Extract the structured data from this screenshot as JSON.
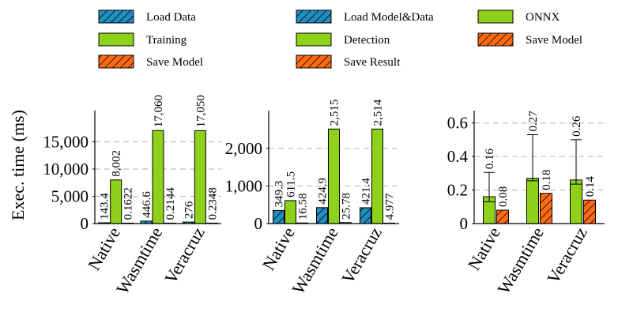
{
  "colors": {
    "load": "#1f8fc0",
    "train": "#8fd11a",
    "save": "#ff6a14",
    "grid": "#bdbdbd"
  },
  "legend": {
    "columns": [
      [
        {
          "label": "Load Data",
          "style": "load"
        },
        {
          "label": "Training",
          "style": "train"
        },
        {
          "label": "Save Model",
          "style": "save"
        }
      ],
      [
        {
          "label": "Load Model&Data",
          "style": "load"
        },
        {
          "label": "Detection",
          "style": "train"
        },
        {
          "label": "Save Result",
          "style": "save"
        }
      ],
      [
        {
          "label": "ONNX",
          "style": "train"
        },
        {
          "label": "Save Model",
          "style": "save"
        }
      ]
    ]
  },
  "chart_data": [
    {
      "type": "bar",
      "ylabel": "Exec. time (ms)",
      "categories": [
        "Native",
        "Wasmtime",
        "Veracruz"
      ],
      "ylim": [
        0,
        20000
      ],
      "yticks": [
        0,
        5000,
        10000,
        15000
      ],
      "ytick_labels": [
        "0",
        "5,000",
        "10,000",
        "15,000"
      ],
      "grid": true,
      "series": [
        {
          "name": "Load Data",
          "style": "load",
          "values": [
            143.4,
            446.6,
            276
          ],
          "labels": [
            "143.4",
            "446.6",
            "276"
          ]
        },
        {
          "name": "Training",
          "style": "train",
          "values": [
            8002,
            17060,
            17050
          ],
          "labels": [
            "8,002",
            "17,060",
            "17,050"
          ]
        },
        {
          "name": "Save Model",
          "style": "save",
          "values": [
            0.1622,
            0.2144,
            0.2348
          ],
          "labels": [
            "0.1622",
            "0.2144",
            "0.2348"
          ]
        }
      ]
    },
    {
      "type": "bar",
      "ylabel": "",
      "categories": [
        "Native",
        "Wasmtime",
        "Veracruz"
      ],
      "ylim": [
        0,
        2900
      ],
      "yticks": [
        0,
        1000,
        2000
      ],
      "ytick_labels": [
        "0",
        "1,000",
        "2,000"
      ],
      "grid": true,
      "series": [
        {
          "name": "Load Model&Data",
          "style": "load",
          "values": [
            349.3,
            424.9,
            421.4
          ],
          "labels": [
            "349.3",
            "424.9",
            "421.4"
          ]
        },
        {
          "name": "Detection",
          "style": "train",
          "values": [
            611.5,
            2515,
            2514
          ],
          "labels": [
            "611.5",
            "2,515",
            "2,514"
          ]
        },
        {
          "name": "Save Result",
          "style": "save",
          "values": [
            16.58,
            25.78,
            4.977
          ],
          "labels": [
            "16.58",
            "25.78",
            "4.977"
          ]
        }
      ]
    },
    {
      "type": "bar",
      "ylabel": "",
      "categories": [
        "Native",
        "Wasmtime",
        "Veracruz"
      ],
      "ylim": [
        0,
        0.65
      ],
      "yticks": [
        0,
        0.2,
        0.4,
        0.6
      ],
      "ytick_labels": [
        "0",
        "0.2",
        "0.4",
        "0.6"
      ],
      "grid": true,
      "series": [
        {
          "name": "ONNX",
          "style": "train",
          "values": [
            0.16,
            0.27,
            0.26
          ],
          "labels": [
            "0.16",
            "0.27",
            "0.26"
          ],
          "error_upper": [
            0.305,
            0.53,
            0.5
          ],
          "error_lower": [
            0.13,
            0.255,
            0.235
          ]
        },
        {
          "name": "Save Model",
          "style": "save",
          "values": [
            0.08,
            0.18,
            0.14
          ],
          "labels": [
            "0.08",
            "0.18",
            "0.14"
          ]
        }
      ]
    }
  ]
}
